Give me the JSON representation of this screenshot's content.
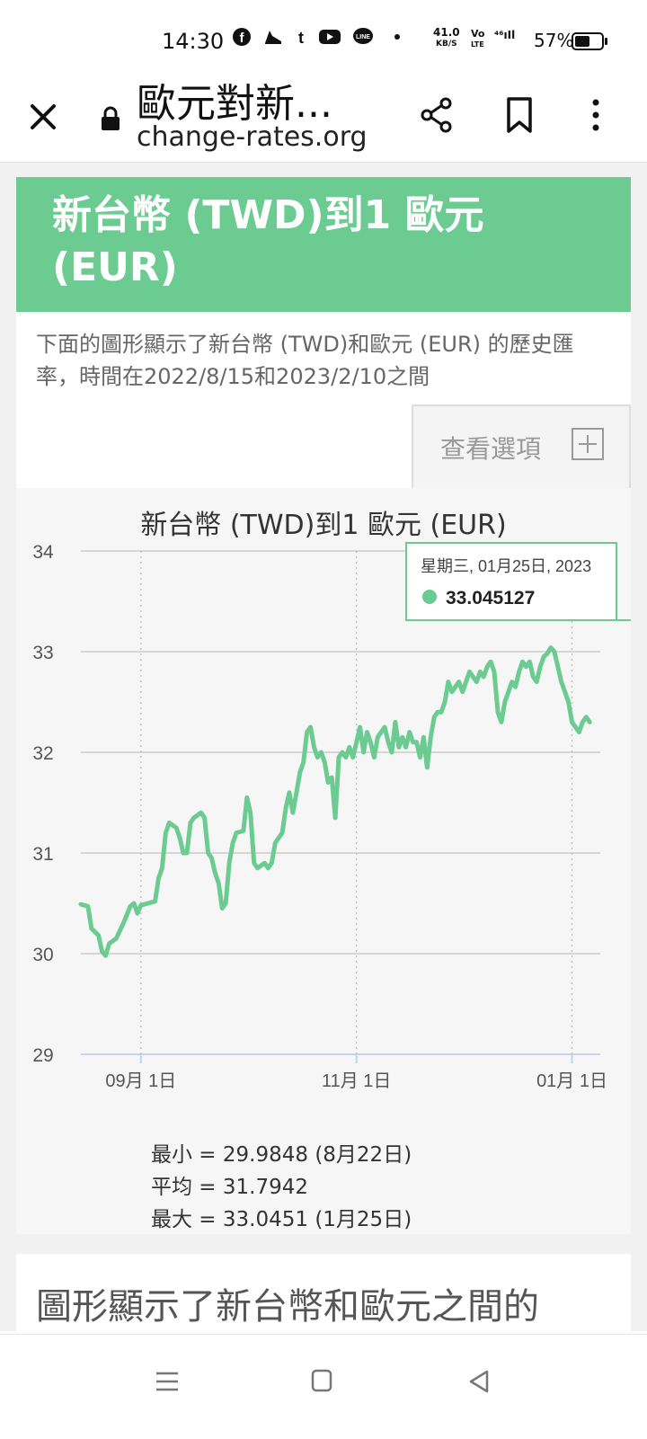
{
  "status_bar": {
    "time": "14:30",
    "icons": [
      "facebook-icon",
      "shoe-icon",
      "tumblr-icon",
      "youtube-icon",
      "line-icon",
      "dot-icon"
    ],
    "net_speed_value": "41.0",
    "net_speed_unit": "KB/S",
    "volte_top": "Vo",
    "volte_bottom": "LTE",
    "signal": "⁴⁶ıIl",
    "battery_pct": "57%",
    "battery_level": 0.57
  },
  "browser": {
    "title": "歐元對新...",
    "url": "change-rates.org"
  },
  "banner": {
    "heading": "新台幣 (TWD)到1 歐元 (EUR)"
  },
  "description": {
    "text": "下面的圖形顯示了新台幣 (TWD)和歐元 (EUR) 的歷史匯率，時間在2022/8/15和2023/2/10之間",
    "options_label": "查看選項"
  },
  "chart_data": {
    "type": "line",
    "title": "新台幣 (TWD)到1 歐元 (EUR)",
    "xlabel": "",
    "ylabel": "",
    "ylim": [
      29,
      34
    ],
    "yticks": [
      "29",
      "30",
      "31",
      "32",
      "33",
      "34"
    ],
    "xticks": [
      {
        "label": "09月 1日",
        "day": 17
      },
      {
        "label": "11月 1日",
        "day": 78
      },
      {
        "label": "01月 1日",
        "day": 139
      }
    ],
    "x_start": "2022-08-15",
    "x_end": "2023-02-10",
    "color": "#6ccb91",
    "tooltip": {
      "date": "星期三, 01月25日, 2023",
      "value": "33.045127",
      "day": 163
    },
    "series": [
      {
        "name": "",
        "values": [
          [
            0,
            30.49
          ],
          [
            2,
            30.47
          ],
          [
            3,
            30.25
          ],
          [
            5,
            30.18
          ],
          [
            6,
            30.02
          ],
          [
            7,
            29.98
          ],
          [
            8,
            30.1
          ],
          [
            10,
            30.15
          ],
          [
            12,
            30.3
          ],
          [
            14,
            30.47
          ],
          [
            15,
            30.5
          ],
          [
            16,
            30.4
          ],
          [
            17,
            30.48
          ],
          [
            19,
            30.5
          ],
          [
            21,
            30.52
          ],
          [
            22,
            30.75
          ],
          [
            23,
            30.85
          ],
          [
            24,
            31.2
          ],
          [
            25,
            31.3
          ],
          [
            27,
            31.25
          ],
          [
            28,
            31.15
          ],
          [
            29,
            31.0
          ],
          [
            30,
            31.0
          ],
          [
            31,
            31.3
          ],
          [
            32,
            31.35
          ],
          [
            34,
            31.4
          ],
          [
            35,
            31.35
          ],
          [
            36,
            31.0
          ],
          [
            37,
            30.95
          ],
          [
            38,
            30.8
          ],
          [
            39,
            30.7
          ],
          [
            40,
            30.45
          ],
          [
            41,
            30.5
          ],
          [
            42,
            30.9
          ],
          [
            43,
            31.1
          ],
          [
            44,
            31.2
          ],
          [
            46,
            31.22
          ],
          [
            47,
            31.55
          ],
          [
            48,
            31.4
          ],
          [
            49,
            30.9
          ],
          [
            50,
            30.85
          ],
          [
            52,
            30.9
          ],
          [
            53,
            30.85
          ],
          [
            54,
            30.9
          ],
          [
            55,
            31.1
          ],
          [
            56,
            31.15
          ],
          [
            57,
            31.2
          ],
          [
            58,
            31.45
          ],
          [
            59,
            31.6
          ],
          [
            60,
            31.4
          ],
          [
            61,
            31.6
          ],
          [
            62,
            31.8
          ],
          [
            63,
            31.9
          ],
          [
            64,
            32.2
          ],
          [
            65,
            32.25
          ],
          [
            66,
            32.05
          ],
          [
            67,
            31.95
          ],
          [
            68,
            32.0
          ],
          [
            69,
            31.9
          ],
          [
            70,
            31.7
          ],
          [
            71,
            31.75
          ],
          [
            72,
            31.35
          ],
          [
            73,
            31.95
          ],
          [
            74,
            32.0
          ],
          [
            75,
            31.95
          ],
          [
            76,
            32.05
          ],
          [
            77,
            31.95
          ],
          [
            78,
            32.1
          ],
          [
            79,
            32.25
          ],
          [
            80,
            32.0
          ],
          [
            81,
            32.2
          ],
          [
            82,
            32.1
          ],
          [
            83,
            31.95
          ],
          [
            84,
            32.15
          ],
          [
            85,
            32.2
          ],
          [
            86,
            32.25
          ],
          [
            87,
            32.1
          ],
          [
            88,
            32.0
          ],
          [
            89,
            32.3
          ],
          [
            90,
            32.05
          ],
          [
            91,
            32.15
          ],
          [
            92,
            32.05
          ],
          [
            93,
            32.2
          ],
          [
            94,
            32.1
          ],
          [
            95,
            32.1
          ],
          [
            96,
            31.95
          ],
          [
            97,
            32.15
          ],
          [
            98,
            31.85
          ],
          [
            99,
            32.15
          ],
          [
            100,
            32.35
          ],
          [
            101,
            32.4
          ],
          [
            102,
            32.4
          ],
          [
            103,
            32.5
          ],
          [
            104,
            32.7
          ],
          [
            105,
            32.6
          ],
          [
            106,
            32.65
          ],
          [
            107,
            32.7
          ],
          [
            108,
            32.6
          ],
          [
            109,
            32.7
          ],
          [
            110,
            32.8
          ],
          [
            111,
            32.75
          ],
          [
            112,
            32.7
          ],
          [
            113,
            32.8
          ],
          [
            114,
            32.75
          ],
          [
            115,
            32.85
          ],
          [
            116,
            32.9
          ],
          [
            117,
            32.8
          ],
          [
            118,
            32.4
          ],
          [
            119,
            32.3
          ],
          [
            120,
            32.5
          ],
          [
            121,
            32.6
          ],
          [
            122,
            32.7
          ],
          [
            123,
            32.65
          ],
          [
            124,
            32.8
          ],
          [
            125,
            32.9
          ],
          [
            126,
            32.85
          ],
          [
            127,
            32.9
          ],
          [
            128,
            32.75
          ],
          [
            129,
            32.7
          ],
          [
            130,
            32.85
          ],
          [
            131,
            32.95
          ],
          [
            132,
            32.98
          ],
          [
            133,
            33.04
          ],
          [
            134,
            33.0
          ],
          [
            135,
            32.85
          ],
          [
            136,
            32.7
          ],
          [
            137,
            32.6
          ],
          [
            138,
            32.5
          ],
          [
            139,
            32.3
          ],
          [
            140,
            32.25
          ],
          [
            141,
            32.2
          ],
          [
            142,
            32.3
          ],
          [
            143,
            32.35
          ],
          [
            144,
            32.3
          ]
        ]
      }
    ]
  },
  "stats": {
    "min": "最小 = 29.9848 (8月22日)",
    "avg": "平均 = 31.7942",
    "max": "最大 = 33.0451 (1月25日)"
  },
  "bottom_card": {
    "text": "圖形顯示了新台幣和歐元之間的"
  },
  "nav": {
    "icons": [
      "recents-menu-icon",
      "home-square-icon",
      "back-triangle-icon"
    ]
  }
}
